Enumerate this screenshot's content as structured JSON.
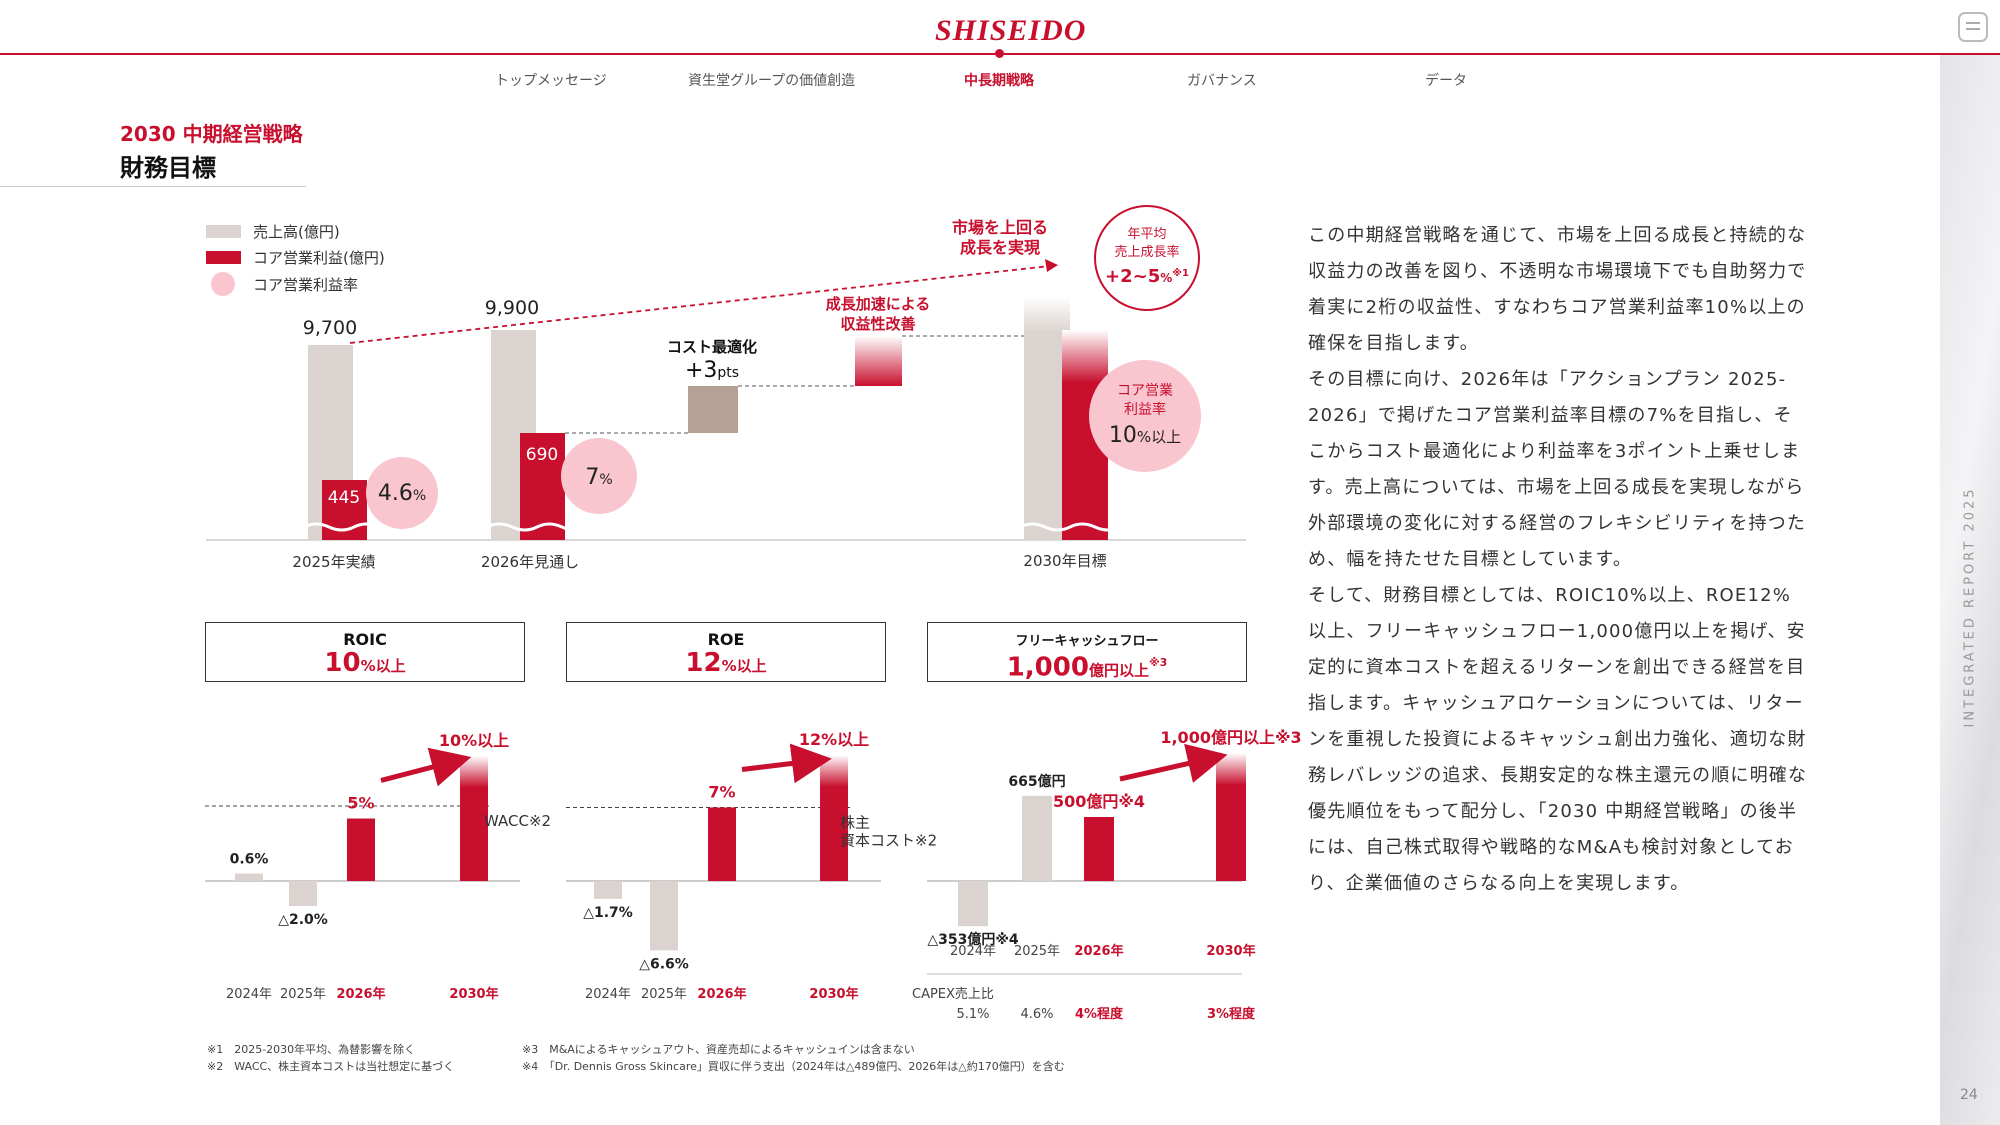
{
  "header": {
    "logo": "SHISEIDO",
    "nav": [
      {
        "label": "トップメッセージ"
      },
      {
        "label": "資生堂グループの価値創造"
      },
      {
        "label": "中長期戦略",
        "active": true
      },
      {
        "label": "ガバナンス"
      },
      {
        "label": "データ"
      }
    ]
  },
  "page": {
    "section": "2030 中期経営戦略",
    "title": "財務目標",
    "side_label": "INTEGRATED REPORT 2025",
    "number": "24"
  },
  "main_chart": {
    "legend": [
      "売上高(億円)",
      "コア営業利益(億円)",
      "コア営業利益率"
    ],
    "years": [
      "2025年実績",
      "2026年見通し",
      "2030年目標"
    ],
    "sales": [
      "9,700",
      "9,900"
    ],
    "core_op": [
      "445",
      "690"
    ],
    "margin_2025": {
      "num": "4.6",
      "unit": "%"
    },
    "margin_2026": {
      "num": "7",
      "unit": "%"
    },
    "cost_label": "コスト最適化",
    "cost_value": {
      "num": "+3",
      "unit": "pts"
    },
    "growth_label": [
      "成長加速による",
      "収益性改善"
    ],
    "market_label": [
      "市場を上回る",
      "成長を実現"
    ],
    "cagr_label": [
      "年平均",
      "売上成長率"
    ],
    "cagr_value": {
      "num": "+2~5",
      "unit": "%",
      "note": "※1"
    },
    "target_margin_label": [
      "コア営業",
      "利益率"
    ],
    "target_margin_value": {
      "num": "10",
      "unit": "%以上"
    }
  },
  "kpis": {
    "roic": {
      "title": "ROIC",
      "value": "10",
      "unit": "%以上",
      "note": ""
    },
    "roe": {
      "title": "ROE",
      "value": "12",
      "unit": "%以上",
      "note": ""
    },
    "fcf": {
      "title": "フリーキャッシュフロー",
      "value": "1,000",
      "unit": "億円以上",
      "note": "※3"
    }
  },
  "chart_data": [
    {
      "type": "bar",
      "title": "ROIC",
      "categories": [
        "2024年",
        "2025年",
        "2026年",
        "2030年"
      ],
      "values": [
        0.6,
        -2.0,
        5,
        10
      ],
      "labels": [
        "0.6%",
        "△2.0%",
        "5%",
        "10%以上"
      ],
      "reference": "WACC※2"
    },
    {
      "type": "bar",
      "title": "ROE",
      "categories": [
        "2024年",
        "2025年",
        "2026年",
        "2030年"
      ],
      "values": [
        -1.7,
        -6.6,
        7,
        12
      ],
      "labels": [
        "△1.7%",
        "△6.6%",
        "7%",
        "12%以上"
      ],
      "reference": "株主資本コスト※2"
    },
    {
      "type": "bar",
      "title": "フリーキャッシュフロー",
      "categories": [
        "2024年",
        "2025年",
        "2026年",
        "2030年"
      ],
      "values": [
        -353,
        665,
        500,
        1000
      ],
      "labels": [
        "△353億円※4",
        "665億円",
        "500億円※4",
        "1,000億円以上※3"
      ],
      "capex_label": "CAPEX売上比",
      "capex": [
        "5.1%",
        "4.6%",
        "4%程度",
        "3%程度"
      ]
    }
  ],
  "footnotes": {
    "left": [
      "※1　2025-2030年平均、為替影響を除く",
      "※2　WACC、株主資本コストは当社想定に基づく"
    ],
    "right": [
      "※3　M&Aによるキャッシュアウト、資産売却によるキャッシュインは含まない",
      "※4　「Dr. Dennis Gross Skincare」買収に伴う支出（2024年は△489億円、2026年は△約170億円）を含む"
    ]
  },
  "body": [
    "この中期経営戦略を通じて、市場を上回る成長と持続的な収益力の改善を図り、不透明な市場環境下でも自助努力で着実に2桁の収益性、すなわちコア営業利益率10%以上の確保を目指します。",
    "その目標に向け、2026年は「アクションプラン 2025-2026」で掲げたコア営業利益率目標の7%を目指し、そこからコスト最適化により利益率を3ポイント上乗せします。売上高については、市場を上回る成長を実現しながら外部環境の変化に対する経営のフレキシビリティを持つため、幅を持たせた目標としています。",
    "そして、財務目標としては、ROIC10%以上、ROE12%以上、フリーキャッシュフロー1,000億円以上を掲げ、安定的に資本コストを超えるリターンを創出できる経営を目指します。キャッシュアロケーションについては、リターンを重視した投資によるキャッシュ創出力強化、適切な財務レバレッジの追求、長期安定的な株主還元の順に明確な優先順位をもって配分し、「2030 中期経営戦略」の後半には、自己株式取得や戦略的なM&Aも検討対象としており、企業価値のさらなる向上を実現します。"
  ],
  "colors": {
    "accent": "#c8102e",
    "sales": "#dbd3cf",
    "cost": "#b5a195",
    "pink": "#f9c5cf"
  }
}
